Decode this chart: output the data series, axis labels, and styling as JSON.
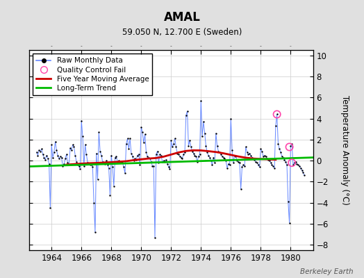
{
  "title": "AMAL",
  "subtitle": "59.050 N, 12.700 E (Sweden)",
  "ylabel": "Temperature Anomaly (°C)",
  "watermark": "Berkeley Earth",
  "xlim": [
    1962.5,
    1981.5
  ],
  "ylim": [
    -8.5,
    10.5
  ],
  "yticks": [
    -8,
    -6,
    -4,
    -2,
    0,
    2,
    4,
    6,
    8,
    10
  ],
  "xticks": [
    1964,
    1966,
    1968,
    1970,
    1972,
    1974,
    1976,
    1978,
    1980
  ],
  "bg_color": "#e0e0e0",
  "plot_bg_color": "#ffffff",
  "raw_color": "#6688ff",
  "raw_dot_color": "#000000",
  "mavg_color": "#cc0000",
  "trend_color": "#00bb00",
  "qc_fail_color": "#ff44aa",
  "raw_data": [
    [
      1963.0,
      0.8
    ],
    [
      1963.083,
      0.5
    ],
    [
      1963.167,
      1.0
    ],
    [
      1963.25,
      0.9
    ],
    [
      1963.333,
      1.1
    ],
    [
      1963.417,
      0.6
    ],
    [
      1963.5,
      0.3
    ],
    [
      1963.583,
      0.1
    ],
    [
      1963.667,
      0.5
    ],
    [
      1963.75,
      0.2
    ],
    [
      1963.833,
      -0.3
    ],
    [
      1963.917,
      -4.5
    ],
    [
      1964.0,
      1.5
    ],
    [
      1964.083,
      0.3
    ],
    [
      1964.167,
      0.8
    ],
    [
      1964.25,
      1.8
    ],
    [
      1964.333,
      1.0
    ],
    [
      1964.417,
      0.5
    ],
    [
      1964.5,
      0.2
    ],
    [
      1964.583,
      0.4
    ],
    [
      1964.667,
      0.3
    ],
    [
      1964.75,
      -0.5
    ],
    [
      1964.833,
      -0.3
    ],
    [
      1964.917,
      0.2
    ],
    [
      1965.0,
      0.6
    ],
    [
      1965.083,
      -0.2
    ],
    [
      1965.167,
      -0.4
    ],
    [
      1965.25,
      1.2
    ],
    [
      1965.333,
      1.0
    ],
    [
      1965.417,
      1.5
    ],
    [
      1965.5,
      1.3
    ],
    [
      1965.583,
      0.5
    ],
    [
      1965.667,
      -0.1
    ],
    [
      1965.75,
      -0.4
    ],
    [
      1965.833,
      -0.5
    ],
    [
      1965.917,
      -0.8
    ],
    [
      1966.0,
      3.8
    ],
    [
      1966.083,
      2.3
    ],
    [
      1966.167,
      -0.5
    ],
    [
      1966.25,
      1.5
    ],
    [
      1966.333,
      0.6
    ],
    [
      1966.417,
      -0.2
    ],
    [
      1966.5,
      -0.3
    ],
    [
      1966.583,
      -0.4
    ],
    [
      1966.667,
      -0.4
    ],
    [
      1966.75,
      -0.6
    ],
    [
      1966.833,
      -4.0
    ],
    [
      1966.917,
      -6.8
    ],
    [
      1967.0,
      0.7
    ],
    [
      1967.083,
      -1.8
    ],
    [
      1967.167,
      2.7
    ],
    [
      1967.25,
      0.9
    ],
    [
      1967.333,
      0.5
    ],
    [
      1967.417,
      -0.1
    ],
    [
      1967.5,
      -0.2
    ],
    [
      1967.583,
      -0.3
    ],
    [
      1967.667,
      0.0
    ],
    [
      1967.75,
      -0.4
    ],
    [
      1967.833,
      -0.7
    ],
    [
      1967.917,
      -3.3
    ],
    [
      1968.0,
      0.5
    ],
    [
      1968.083,
      -0.6
    ],
    [
      1968.167,
      -2.4
    ],
    [
      1968.25,
      0.3
    ],
    [
      1968.333,
      0.4
    ],
    [
      1968.417,
      -0.1
    ],
    [
      1968.5,
      0.0
    ],
    [
      1968.583,
      -0.2
    ],
    [
      1968.667,
      -0.1
    ],
    [
      1968.75,
      -0.2
    ],
    [
      1968.833,
      -0.6
    ],
    [
      1968.917,
      -1.2
    ],
    [
      1969.0,
      1.6
    ],
    [
      1969.083,
      2.1
    ],
    [
      1969.167,
      1.1
    ],
    [
      1969.25,
      2.1
    ],
    [
      1969.333,
      0.7
    ],
    [
      1969.417,
      0.4
    ],
    [
      1969.5,
      0.0
    ],
    [
      1969.583,
      0.2
    ],
    [
      1969.667,
      0.1
    ],
    [
      1969.75,
      0.5
    ],
    [
      1969.833,
      0.6
    ],
    [
      1969.917,
      -0.4
    ],
    [
      1970.0,
      3.2
    ],
    [
      1970.083,
      2.7
    ],
    [
      1970.167,
      1.7
    ],
    [
      1970.25,
      2.5
    ],
    [
      1970.333,
      0.8
    ],
    [
      1970.417,
      0.4
    ],
    [
      1970.5,
      0.3
    ],
    [
      1970.583,
      0.2
    ],
    [
      1970.667,
      -0.1
    ],
    [
      1970.75,
      -0.5
    ],
    [
      1970.833,
      -0.5
    ],
    [
      1970.917,
      -7.3
    ],
    [
      1971.0,
      0.6
    ],
    [
      1971.083,
      0.9
    ],
    [
      1971.167,
      -0.2
    ],
    [
      1971.25,
      0.6
    ],
    [
      1971.333,
      0.5
    ],
    [
      1971.417,
      -0.1
    ],
    [
      1971.5,
      0.0
    ],
    [
      1971.583,
      -0.1
    ],
    [
      1971.667,
      0.1
    ],
    [
      1971.75,
      -0.3
    ],
    [
      1971.833,
      -0.6
    ],
    [
      1971.917,
      -0.8
    ],
    [
      1972.0,
      1.9
    ],
    [
      1972.083,
      1.3
    ],
    [
      1972.167,
      1.6
    ],
    [
      1972.25,
      2.1
    ],
    [
      1972.333,
      1.3
    ],
    [
      1972.417,
      0.7
    ],
    [
      1972.5,
      0.6
    ],
    [
      1972.583,
      0.4
    ],
    [
      1972.667,
      0.3
    ],
    [
      1972.75,
      0.2
    ],
    [
      1972.833,
      0.6
    ],
    [
      1972.917,
      0.8
    ],
    [
      1973.0,
      4.3
    ],
    [
      1973.083,
      4.7
    ],
    [
      1973.167,
      1.4
    ],
    [
      1973.25,
      1.9
    ],
    [
      1973.333,
      1.3
    ],
    [
      1973.417,
      0.9
    ],
    [
      1973.5,
      0.7
    ],
    [
      1973.583,
      0.5
    ],
    [
      1973.667,
      0.4
    ],
    [
      1973.75,
      -0.1
    ],
    [
      1973.833,
      0.4
    ],
    [
      1973.917,
      0.6
    ],
    [
      1974.0,
      5.7
    ],
    [
      1974.083,
      2.3
    ],
    [
      1974.167,
      3.7
    ],
    [
      1974.25,
      2.6
    ],
    [
      1974.333,
      1.4
    ],
    [
      1974.417,
      0.8
    ],
    [
      1974.5,
      0.5
    ],
    [
      1974.583,
      0.3
    ],
    [
      1974.667,
      0.0
    ],
    [
      1974.75,
      -0.4
    ],
    [
      1974.833,
      0.3
    ],
    [
      1974.917,
      -0.2
    ],
    [
      1975.0,
      2.6
    ],
    [
      1975.083,
      1.4
    ],
    [
      1975.167,
      0.9
    ],
    [
      1975.25,
      0.8
    ],
    [
      1975.333,
      0.6
    ],
    [
      1975.417,
      0.4
    ],
    [
      1975.5,
      0.3
    ],
    [
      1975.583,
      0.2
    ],
    [
      1975.667,
      0.0
    ],
    [
      1975.75,
      -0.7
    ],
    [
      1975.833,
      -0.3
    ],
    [
      1975.917,
      -0.4
    ],
    [
      1976.0,
      4.0
    ],
    [
      1976.083,
      1.0
    ],
    [
      1976.167,
      -0.2
    ],
    [
      1976.25,
      0.5
    ],
    [
      1976.333,
      0.4
    ],
    [
      1976.417,
      0.0
    ],
    [
      1976.5,
      -0.1
    ],
    [
      1976.583,
      -0.2
    ],
    [
      1976.667,
      -2.7
    ],
    [
      1976.75,
      -0.6
    ],
    [
      1976.833,
      -0.4
    ],
    [
      1976.917,
      -0.5
    ],
    [
      1977.0,
      1.3
    ],
    [
      1977.083,
      0.8
    ],
    [
      1977.167,
      0.6
    ],
    [
      1977.25,
      0.7
    ],
    [
      1977.333,
      0.5
    ],
    [
      1977.417,
      0.3
    ],
    [
      1977.5,
      0.2
    ],
    [
      1977.583,
      0.1
    ],
    [
      1977.667,
      -0.1
    ],
    [
      1977.75,
      -0.2
    ],
    [
      1977.833,
      -0.4
    ],
    [
      1977.917,
      -0.6
    ],
    [
      1978.0,
      1.1
    ],
    [
      1978.083,
      0.9
    ],
    [
      1978.167,
      0.4
    ],
    [
      1978.25,
      0.5
    ],
    [
      1978.333,
      0.4
    ],
    [
      1978.417,
      0.2
    ],
    [
      1978.5,
      0.1
    ],
    [
      1978.583,
      0.0
    ],
    [
      1978.667,
      -0.2
    ],
    [
      1978.75,
      -0.4
    ],
    [
      1978.833,
      -0.5
    ],
    [
      1978.917,
      -0.7
    ],
    [
      1979.0,
      3.3
    ],
    [
      1979.083,
      4.4
    ],
    [
      1979.167,
      1.6
    ],
    [
      1979.25,
      1.1
    ],
    [
      1979.333,
      0.8
    ],
    [
      1979.417,
      0.4
    ],
    [
      1979.5,
      0.3
    ],
    [
      1979.583,
      0.1
    ],
    [
      1979.667,
      -0.1
    ],
    [
      1979.75,
      -0.4
    ],
    [
      1979.833,
      -3.9
    ],
    [
      1979.917,
      -5.9
    ],
    [
      1980.0,
      1.4
    ],
    [
      1980.083,
      1.6
    ],
    [
      1980.167,
      -0.4
    ],
    [
      1980.25,
      -0.2
    ],
    [
      1980.333,
      -0.1
    ],
    [
      1980.417,
      -0.3
    ],
    [
      1980.5,
      -0.4
    ],
    [
      1980.583,
      -0.5
    ],
    [
      1980.667,
      -0.7
    ],
    [
      1980.75,
      -0.9
    ],
    [
      1980.833,
      -1.1
    ],
    [
      1980.917,
      -1.4
    ]
  ],
  "qc_fail_points": [
    [
      1979.083,
      4.4
    ],
    [
      1979.917,
      1.3
    ],
    [
      1980.083,
      -0.2
    ]
  ],
  "moving_avg": [
    [
      1965.0,
      -0.38
    ],
    [
      1965.5,
      -0.33
    ],
    [
      1966.0,
      -0.28
    ],
    [
      1966.5,
      -0.24
    ],
    [
      1967.0,
      -0.22
    ],
    [
      1967.5,
      -0.18
    ],
    [
      1968.0,
      -0.15
    ],
    [
      1968.5,
      -0.1
    ],
    [
      1969.0,
      -0.05
    ],
    [
      1969.5,
      0.05
    ],
    [
      1970.0,
      0.13
    ],
    [
      1970.5,
      0.2
    ],
    [
      1971.0,
      0.25
    ],
    [
      1971.5,
      0.38
    ],
    [
      1972.0,
      0.58
    ],
    [
      1972.5,
      0.78
    ],
    [
      1973.0,
      0.92
    ],
    [
      1973.5,
      0.98
    ],
    [
      1974.0,
      0.97
    ],
    [
      1974.5,
      0.9
    ],
    [
      1975.0,
      0.82
    ],
    [
      1975.5,
      0.7
    ],
    [
      1976.0,
      0.55
    ],
    [
      1976.5,
      0.4
    ],
    [
      1977.0,
      0.28
    ],
    [
      1977.5,
      0.2
    ],
    [
      1978.0,
      0.16
    ],
    [
      1978.5,
      0.13
    ],
    [
      1979.0,
      0.1
    ]
  ],
  "trend_line": [
    [
      1962.5,
      -0.55
    ],
    [
      1981.5,
      0.3
    ]
  ]
}
